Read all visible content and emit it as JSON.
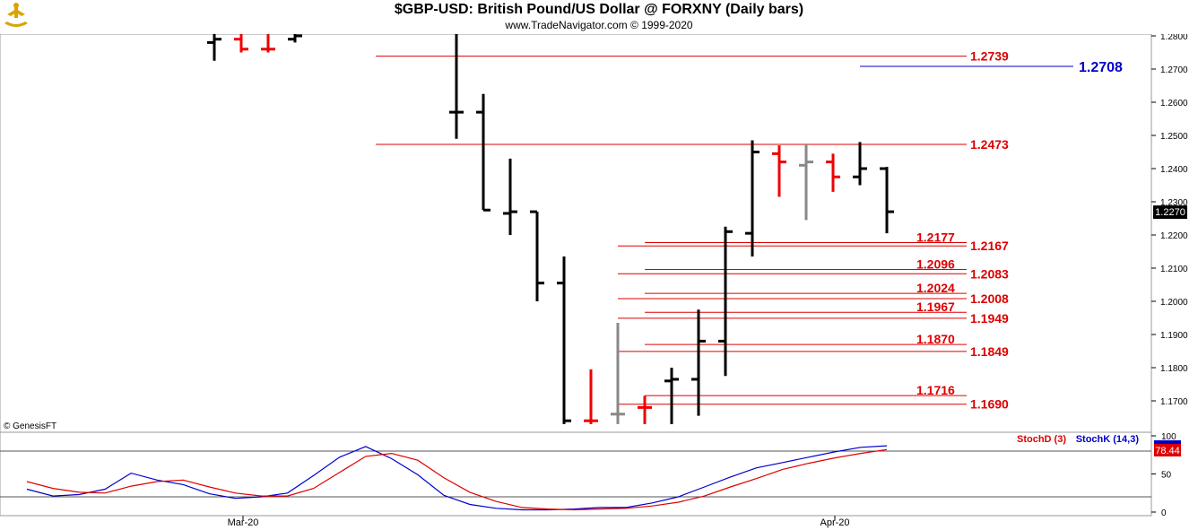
{
  "header": {
    "title": "$GBP-USD:  British Pound/US Dollar @ FORXNY  (Daily bars)",
    "subtitle": "www.TradeNavigator.com © 1999-2020"
  },
  "copyright": "© GenesisFT",
  "colors": {
    "bull_bar": "#000000",
    "bear_bar": "#ee0000",
    "neutral_bar": "#888888",
    "level_line": "#dd0000",
    "level_text": "#dd0000",
    "target_line": "#0000cc",
    "stoch_k": "#0000cc",
    "stoch_d": "#dd0000"
  },
  "chart_data": [
    {
      "type": "ohlc",
      "title": "$GBP-USD:  British Pound/US Dollar @ FORXNY  (Daily bars)",
      "ylim": [
        1.162,
        1.282
      ],
      "y_ticks": [
        "1.2800",
        "1.2700",
        "1.2600",
        "1.2500",
        "1.2400",
        "1.2300",
        "1.2200",
        "1.2100",
        "1.2000",
        "1.1900",
        "1.1800",
        "1.1700"
      ],
      "y_tick_values": [
        1.28,
        1.27,
        1.26,
        1.25,
        1.24,
        1.23,
        1.22,
        1.21,
        1.2,
        1.19,
        1.18,
        1.17
      ],
      "last_price": "1.2270",
      "last_price_value": 1.227,
      "x_labels": [
        "Mar-20",
        "Apr-20"
      ],
      "bars": [
        {
          "o": 1.278,
          "h": 1.282,
          "l": 1.2725,
          "c": 1.279,
          "color": "black"
        },
        {
          "o": 1.279,
          "h": 1.282,
          "l": 1.275,
          "c": 1.276,
          "color": "red"
        },
        {
          "o": 1.276,
          "h": 1.282,
          "l": 1.275,
          "c": 1.276,
          "color": "red"
        },
        {
          "o": 1.279,
          "h": 1.282,
          "l": 1.278,
          "c": 1.28,
          "color": "black"
        },
        {
          "o": 1.257,
          "h": 1.282,
          "l": 1.249,
          "c": 1.257,
          "color": "black"
        },
        {
          "o": 1.257,
          "h": 1.2625,
          "l": 1.2275,
          "c": 1.2275,
          "color": "black"
        },
        {
          "o": 1.2265,
          "h": 1.243,
          "l": 1.22,
          "c": 1.227,
          "color": "black"
        },
        {
          "o": 1.227,
          "h": 1.227,
          "l": 1.2,
          "c": 1.2055,
          "color": "black"
        },
        {
          "o": 1.2055,
          "h": 1.2135,
          "l": 1.163,
          "c": 1.164,
          "color": "black"
        },
        {
          "o": 1.164,
          "h": 1.1795,
          "l": 1.163,
          "c": 1.164,
          "color": "red"
        },
        {
          "o": 1.166,
          "h": 1.1935,
          "l": 1.163,
          "c": 1.166,
          "color": "gray"
        },
        {
          "o": 1.168,
          "h": 1.1715,
          "l": 1.163,
          "c": 1.168,
          "color": "red"
        },
        {
          "o": 1.176,
          "h": 1.18,
          "l": 1.163,
          "c": 1.1765,
          "color": "black"
        },
        {
          "o": 1.1765,
          "h": 1.1975,
          "l": 1.1655,
          "c": 1.188,
          "color": "black"
        },
        {
          "o": 1.188,
          "h": 1.2225,
          "l": 1.1775,
          "c": 1.221,
          "color": "black"
        },
        {
          "o": 1.2205,
          "h": 1.2485,
          "l": 1.2135,
          "c": 1.245,
          "color": "black"
        },
        {
          "o": 1.2445,
          "h": 1.247,
          "l": 1.2315,
          "c": 1.242,
          "color": "red"
        },
        {
          "o": 1.241,
          "h": 1.2475,
          "l": 1.2245,
          "c": 1.242,
          "color": "gray"
        },
        {
          "o": 1.242,
          "h": 1.2445,
          "l": 1.233,
          "c": 1.2375,
          "color": "red"
        },
        {
          "o": 1.2375,
          "h": 1.248,
          "l": 1.235,
          "c": 1.24,
          "color": "black"
        },
        {
          "o": 1.24,
          "h": 1.2405,
          "l": 1.2205,
          "c": 1.227,
          "color": "black"
        }
      ],
      "levels": [
        {
          "label": "1.2739",
          "value": 1.2739,
          "span": "long"
        },
        {
          "label": "1.2473",
          "value": 1.2473,
          "span": "long"
        },
        {
          "label": "1.2177",
          "value": 1.2177,
          "span": "upper"
        },
        {
          "label": "1.2167",
          "value": 1.2167,
          "span": "lower"
        },
        {
          "label": "1.2096",
          "value": 1.2096,
          "span": "upper"
        },
        {
          "label": "1.2083",
          "value": 1.2083,
          "span": "lower"
        },
        {
          "label": "1.2024",
          "value": 1.2024,
          "span": "upper"
        },
        {
          "label": "1.2008",
          "value": 1.2008,
          "span": "lower"
        },
        {
          "label": "1.1967",
          "value": 1.1967,
          "span": "upper"
        },
        {
          "label": "1.1949",
          "value": 1.1949,
          "span": "lower"
        },
        {
          "label": "1.1870",
          "value": 1.187,
          "span": "upper"
        },
        {
          "label": "1.1849",
          "value": 1.1849,
          "span": "lower"
        },
        {
          "label": "1.1716",
          "value": 1.1716,
          "span": "upper"
        },
        {
          "label": "1.1690",
          "value": 1.169,
          "span": "lower"
        }
      ],
      "target": {
        "label": "1.2708",
        "value": 1.2708
      }
    },
    {
      "type": "line",
      "ylim": [
        0,
        100
      ],
      "y_ticks": [
        "100",
        "50",
        "0"
      ],
      "y_tick_values": [
        100,
        50,
        0
      ],
      "reference_lines": [
        80,
        20
      ],
      "legend": [
        "StochD (3)",
        "StochK (14,3)"
      ],
      "last_value": "78.44",
      "series": [
        {
          "name": "StochK (14,3)",
          "color": "blue",
          "values": [
            30,
            21,
            23,
            30,
            51,
            42,
            36,
            24,
            18,
            20,
            25,
            48,
            72,
            86,
            70,
            49,
            22,
            10,
            5,
            3,
            3,
            4,
            6,
            6,
            12,
            20,
            33,
            46,
            58,
            65,
            72,
            79,
            85,
            87
          ]
        },
        {
          "name": "StochD (3)",
          "color": "red",
          "values": [
            40,
            31,
            26,
            25,
            34,
            40,
            42,
            33,
            25,
            21,
            21,
            31,
            52,
            73,
            77,
            68,
            45,
            26,
            14,
            6,
            4,
            3,
            4,
            5,
            8,
            13,
            21,
            33,
            44,
            56,
            64,
            71,
            77,
            82
          ]
        }
      ]
    }
  ]
}
